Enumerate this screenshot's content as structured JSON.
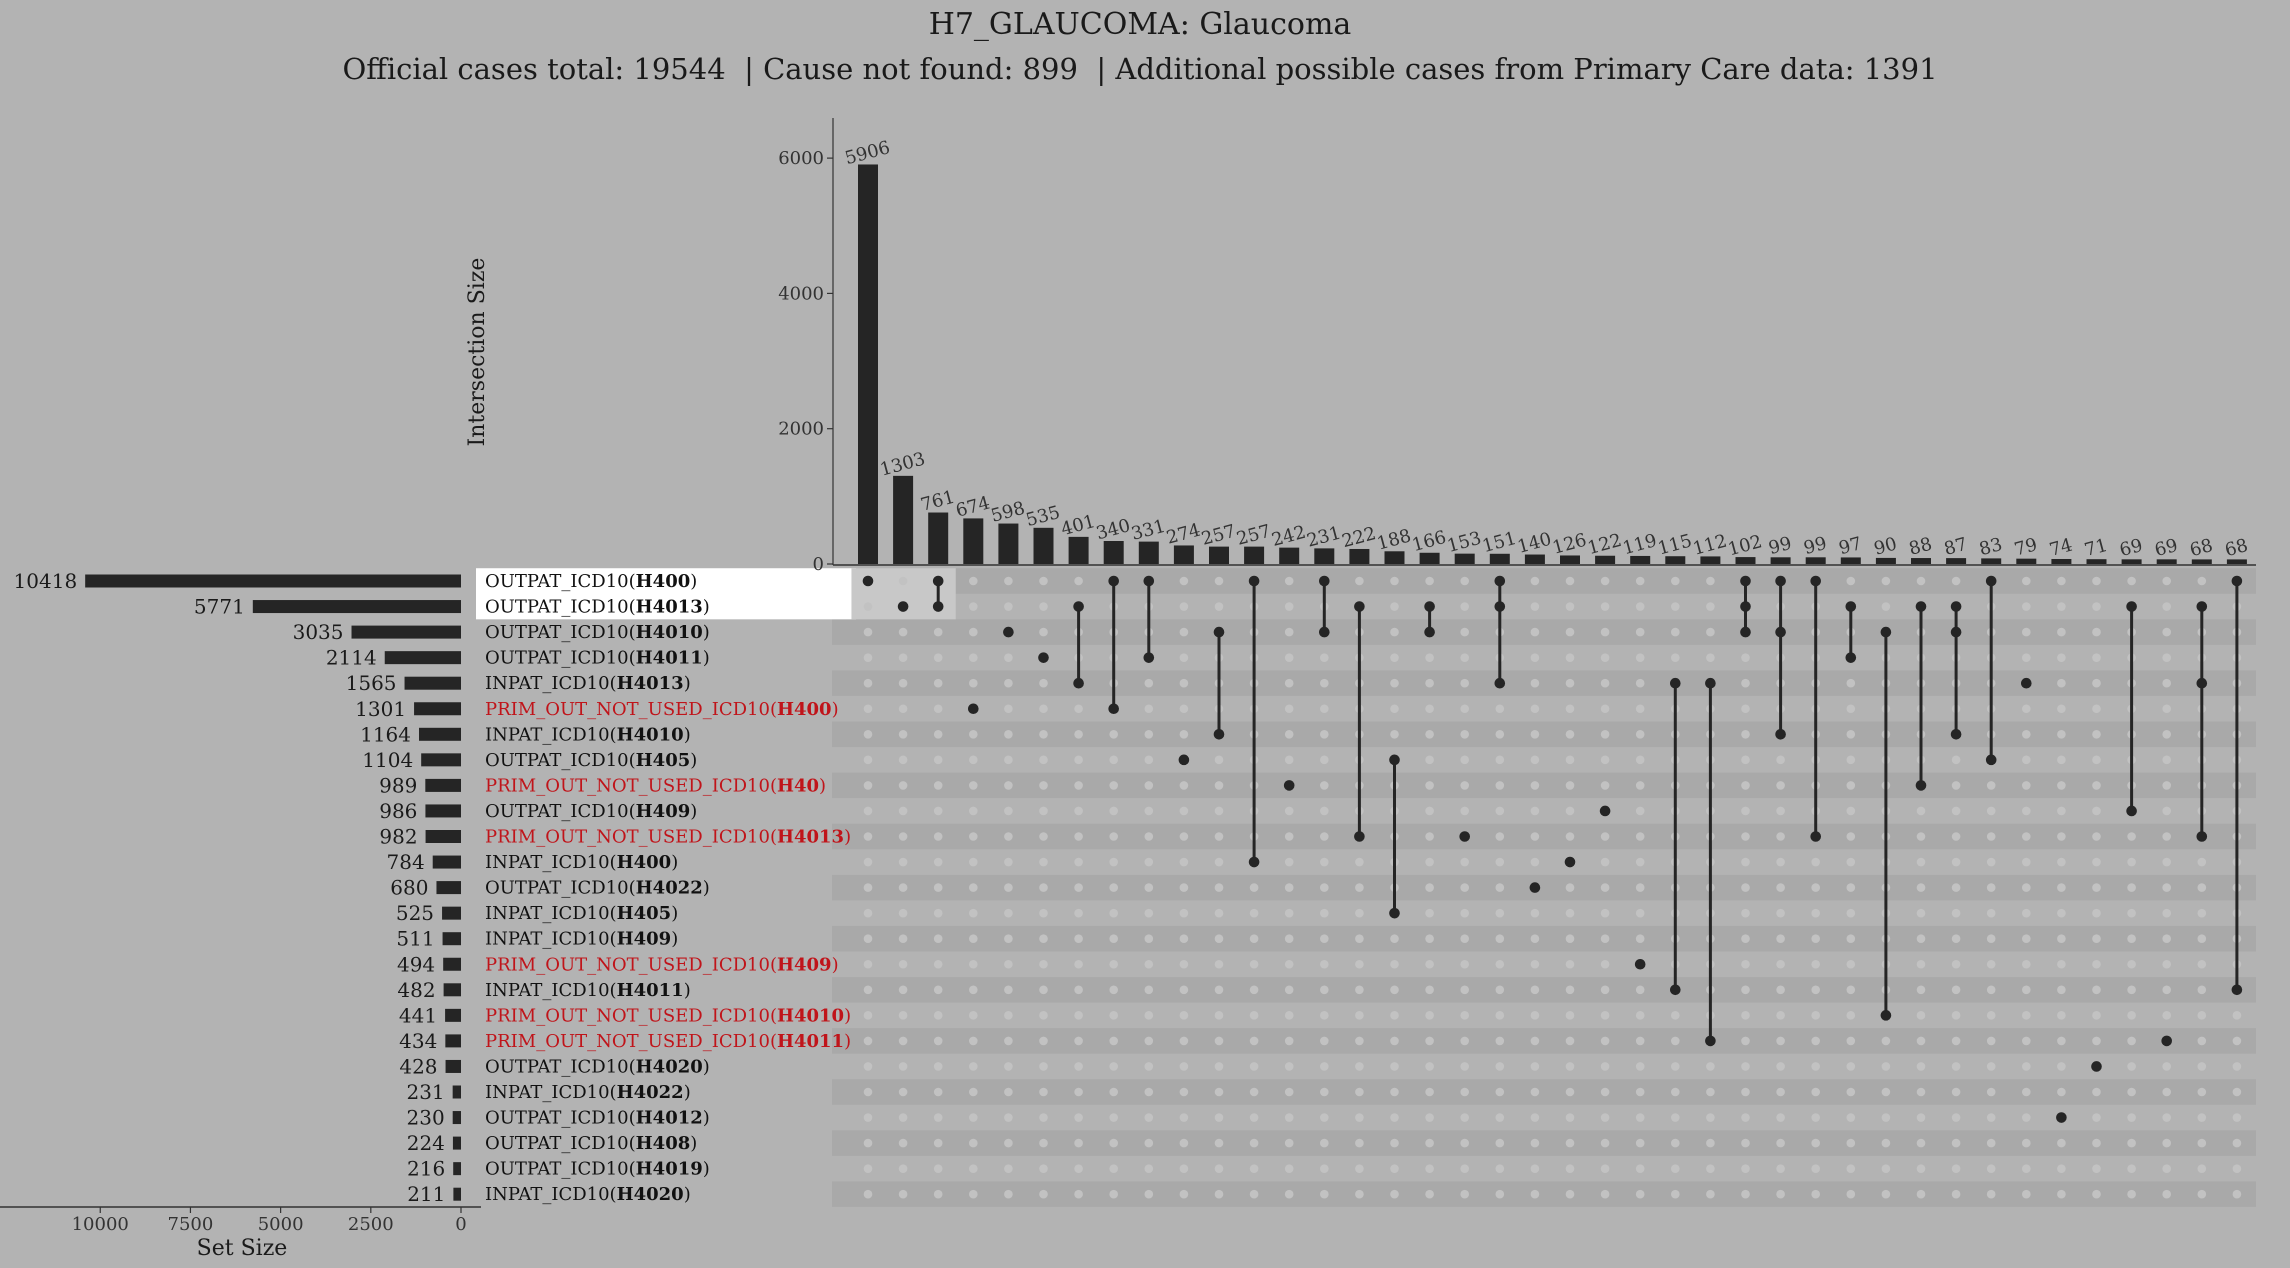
{
  "chart_data": {
    "type": "upset",
    "title": "H7_GLAUCOMA: Glaucoma",
    "subtitle": "Official cases total: 19544  | Cause not found: 899  | Additional possible cases from Primary Care data: 1391",
    "ylabel": "Intersection Size",
    "xlabel": "Set Size",
    "y_ticks": [
      "0",
      "2000",
      "4000",
      "6000"
    ],
    "ylim": [
      0,
      6800
    ],
    "set_size_ticks": [
      "10000",
      "7500",
      "5000",
      "2500",
      "0"
    ],
    "set_size_xlim": [
      0,
      10700
    ],
    "highlight_color": "#ffffff",
    "primary_care_color": "#c0141a",
    "sets": [
      {
        "prefix": "OUTPAT_ICD10(",
        "code": "H400",
        "suffix": ")",
        "size": 10418,
        "primary": false
      },
      {
        "prefix": "OUTPAT_ICD10(",
        "code": "H4013",
        "suffix": ")",
        "size": 5771,
        "primary": false
      },
      {
        "prefix": "OUTPAT_ICD10(",
        "code": "H4010",
        "suffix": ")",
        "size": 3035,
        "primary": false
      },
      {
        "prefix": "OUTPAT_ICD10(",
        "code": "H4011",
        "suffix": ")",
        "size": 2114,
        "primary": false
      },
      {
        "prefix": "INPAT_ICD10(",
        "code": "H4013",
        "suffix": ")",
        "size": 1565,
        "primary": false
      },
      {
        "prefix": "PRIM_OUT_NOT_USED_ICD10(",
        "code": "H400",
        "suffix": ")",
        "size": 1301,
        "primary": true
      },
      {
        "prefix": "INPAT_ICD10(",
        "code": "H4010",
        "suffix": ")",
        "size": 1164,
        "primary": false
      },
      {
        "prefix": "OUTPAT_ICD10(",
        "code": "H405",
        "suffix": ")",
        "size": 1104,
        "primary": false
      },
      {
        "prefix": "PRIM_OUT_NOT_USED_ICD10(",
        "code": "H40",
        "suffix": ")",
        "size": 989,
        "primary": true
      },
      {
        "prefix": "OUTPAT_ICD10(",
        "code": "H409",
        "suffix": ")",
        "size": 986,
        "primary": false
      },
      {
        "prefix": "PRIM_OUT_NOT_USED_ICD10(",
        "code": "H4013",
        "suffix": ")",
        "size": 982,
        "primary": true
      },
      {
        "prefix": "INPAT_ICD10(",
        "code": "H400",
        "suffix": ")",
        "size": 784,
        "primary": false
      },
      {
        "prefix": "OUTPAT_ICD10(",
        "code": "H4022",
        "suffix": ")",
        "size": 680,
        "primary": false
      },
      {
        "prefix": "INPAT_ICD10(",
        "code": "H405",
        "suffix": ")",
        "size": 525,
        "primary": false
      },
      {
        "prefix": "INPAT_ICD10(",
        "code": "H409",
        "suffix": ")",
        "size": 511,
        "primary": false
      },
      {
        "prefix": "PRIM_OUT_NOT_USED_ICD10(",
        "code": "H409",
        "suffix": ")",
        "size": 494,
        "primary": true
      },
      {
        "prefix": "INPAT_ICD10(",
        "code": "H4011",
        "suffix": ")",
        "size": 482,
        "primary": false
      },
      {
        "prefix": "PRIM_OUT_NOT_USED_ICD10(",
        "code": "H4010",
        "suffix": ")",
        "size": 441,
        "primary": true
      },
      {
        "prefix": "PRIM_OUT_NOT_USED_ICD10(",
        "code": "H4011",
        "suffix": ")",
        "size": 434,
        "primary": true
      },
      {
        "prefix": "OUTPAT_ICD10(",
        "code": "H4020",
        "suffix": ")",
        "size": 428,
        "primary": false
      },
      {
        "prefix": "INPAT_ICD10(",
        "code": "H4022",
        "suffix": ")",
        "size": 231,
        "primary": false
      },
      {
        "prefix": "OUTPAT_ICD10(",
        "code": "H4012",
        "suffix": ")",
        "size": 230,
        "primary": false
      },
      {
        "prefix": "OUTPAT_ICD10(",
        "code": "H408",
        "suffix": ")",
        "size": 224,
        "primary": false
      },
      {
        "prefix": "OUTPAT_ICD10(",
        "code": "H4019",
        "suffix": ")",
        "size": 216,
        "primary": false
      },
      {
        "prefix": "INPAT_ICD10(",
        "code": "H4020",
        "suffix": ")",
        "size": 211,
        "primary": false
      }
    ],
    "highlighted_sets": [
      0,
      1
    ],
    "highlighted_intersections": [
      0,
      1,
      2
    ],
    "intersections": [
      {
        "size": 5906,
        "sets": [
          0
        ]
      },
      {
        "size": 1303,
        "sets": [
          1
        ]
      },
      {
        "size": 761,
        "sets": [
          0,
          1
        ]
      },
      {
        "size": 674,
        "sets": [
          5
        ]
      },
      {
        "size": 598,
        "sets": [
          2
        ]
      },
      {
        "size": 535,
        "sets": [
          3
        ]
      },
      {
        "size": 401,
        "sets": [
          1,
          4
        ]
      },
      {
        "size": 340,
        "sets": [
          0,
          5
        ]
      },
      {
        "size": 331,
        "sets": [
          0,
          3
        ]
      },
      {
        "size": 274,
        "sets": [
          7
        ]
      },
      {
        "size": 257,
        "sets": [
          2,
          6
        ]
      },
      {
        "size": 257,
        "sets": [
          0,
          11
        ]
      },
      {
        "size": 242,
        "sets": [
          8
        ]
      },
      {
        "size": 231,
        "sets": [
          0,
          2
        ]
      },
      {
        "size": 222,
        "sets": [
          1,
          10
        ]
      },
      {
        "size": 188,
        "sets": [
          7,
          13
        ]
      },
      {
        "size": 166,
        "sets": [
          1,
          2
        ]
      },
      {
        "size": 153,
        "sets": [
          10
        ]
      },
      {
        "size": 151,
        "sets": [
          0,
          1,
          4
        ]
      },
      {
        "size": 140,
        "sets": [
          12
        ]
      },
      {
        "size": 126,
        "sets": [
          11
        ]
      },
      {
        "size": 122,
        "sets": [
          9
        ]
      },
      {
        "size": 119,
        "sets": [
          15
        ]
      },
      {
        "size": 115,
        "sets": [
          4,
          16
        ]
      },
      {
        "size": 112,
        "sets": [
          4,
          18
        ]
      },
      {
        "size": 102,
        "sets": [
          0,
          1,
          2
        ]
      },
      {
        "size": 99,
        "sets": [
          0,
          2,
          6
        ]
      },
      {
        "size": 99,
        "sets": [
          0,
          10
        ]
      },
      {
        "size": 97,
        "sets": [
          1,
          3
        ]
      },
      {
        "size": 90,
        "sets": [
          2,
          17
        ]
      },
      {
        "size": 88,
        "sets": [
          1,
          8
        ]
      },
      {
        "size": 87,
        "sets": [
          1,
          2,
          6
        ]
      },
      {
        "size": 83,
        "sets": [
          0,
          7
        ]
      },
      {
        "size": 79,
        "sets": [
          4
        ]
      },
      {
        "size": 74,
        "sets": [
          21
        ]
      },
      {
        "size": 71,
        "sets": [
          19
        ]
      },
      {
        "size": 69,
        "sets": [
          1,
          9
        ]
      },
      {
        "size": 69,
        "sets": [
          18
        ]
      },
      {
        "size": 68,
        "sets": [
          1,
          4,
          10
        ]
      },
      {
        "size": 68,
        "sets": [
          0,
          16
        ]
      }
    ]
  }
}
